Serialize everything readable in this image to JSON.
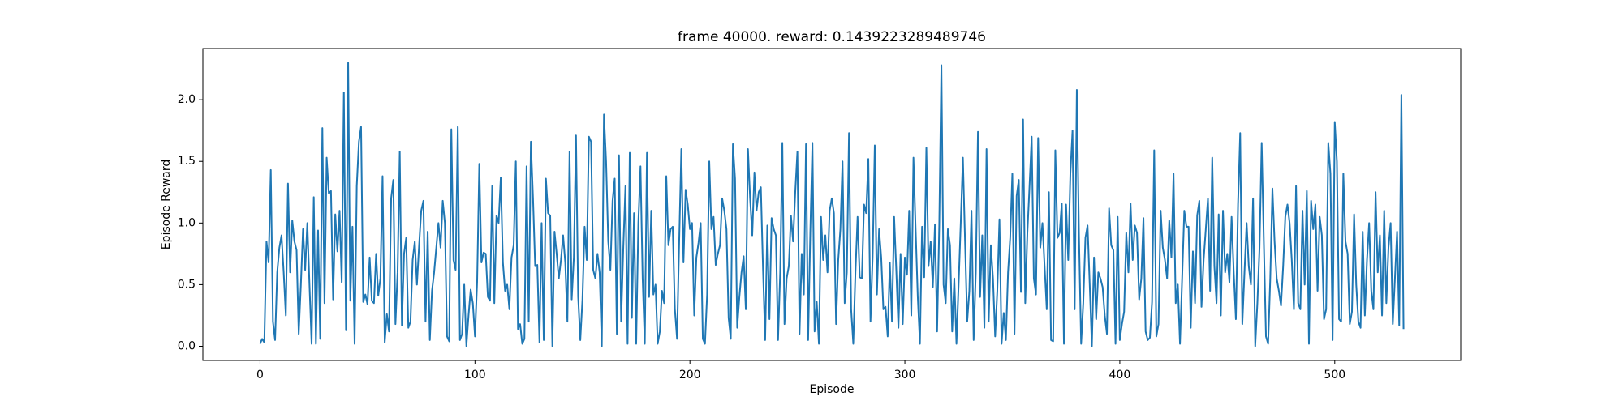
{
  "chart_data": {
    "type": "line",
    "title": "frame 40000. reward: 0.1439223289489746",
    "x_label": "Episode",
    "y_label": "Episode Reward",
    "color": "#1f77b4",
    "xlim": [
      -26.6,
      558.6
    ],
    "ylim": [
      -0.115,
      2.415
    ],
    "xticks": [
      0,
      100,
      200,
      300,
      400,
      500
    ],
    "yticks": [
      {
        "value": 0,
        "label": "0.0"
      },
      0.5,
      {
        "value": 1,
        "label": "1.0"
      },
      1.5,
      {
        "value": 2,
        "label": "2.0"
      }
    ],
    "values": [
      0.02,
      0.06,
      0.03,
      0.85,
      0.68,
      1.43,
      0.2,
      0.05,
      0.6,
      0.8,
      0.9,
      0.6,
      0.25,
      1.32,
      0.6,
      1.02,
      0.85,
      0.78,
      0.1,
      0.5,
      0.95,
      0.62,
      1.0,
      0.5,
      0.02,
      1.21,
      0.02,
      0.94,
      0.06,
      1.77,
      0.35,
      1.53,
      1.24,
      1.26,
      0.38,
      1.07,
      0.77,
      1.1,
      0.52,
      2.06,
      0.13,
      2.3,
      0.37,
      0.97,
      0.02,
      1.3,
      1.66,
      1.78,
      0.36,
      0.42,
      0.34,
      0.72,
      0.37,
      0.35,
      0.75,
      0.41,
      0.55,
      1.38,
      0.03,
      0.26,
      0.12,
      1.2,
      1.35,
      0.18,
      0.6,
      1.58,
      0.17,
      0.75,
      0.88,
      0.15,
      0.2,
      0.7,
      0.85,
      0.5,
      0.82,
      1.1,
      1.18,
      0.2,
      0.93,
      0.05,
      0.45,
      0.6,
      0.8,
      1.0,
      0.8,
      1.18,
      1.0,
      0.08,
      0.04,
      1.76,
      0.7,
      0.62,
      1.78,
      0.05,
      0.1,
      0.5,
      0.0,
      0.25,
      0.46,
      0.35,
      0.08,
      0.52,
      1.48,
      0.68,
      0.76,
      0.75,
      0.4,
      0.37,
      1.3,
      0.35,
      1.06,
      1.0,
      1.37,
      0.68,
      0.45,
      0.5,
      0.3,
      0.72,
      0.82,
      1.5,
      0.14,
      0.18,
      0.02,
      0.06,
      1.46,
      0.2,
      1.66,
      1.2,
      0.65,
      0.66,
      0.03,
      1.0,
      0.05,
      1.36,
      1.08,
      1.06,
      0.0,
      0.93,
      0.75,
      0.55,
      0.7,
      0.9,
      0.68,
      0.2,
      1.58,
      0.38,
      0.72,
      1.71,
      0.4,
      0.05,
      0.38,
      0.97,
      0.7,
      1.7,
      1.66,
      0.62,
      0.55,
      0.75,
      0.6,
      0.0,
      1.88,
      1.5,
      0.85,
      0.62,
      1.18,
      1.36,
      0.1,
      1.55,
      0.2,
      0.8,
      1.3,
      0.02,
      1.57,
      0.23,
      1.08,
      0.02,
      1.0,
      1.46,
      0.55,
      0.02,
      1.57,
      0.4,
      1.1,
      0.42,
      0.5,
      0.02,
      0.12,
      0.45,
      0.35,
      1.38,
      0.82,
      0.95,
      0.97,
      0.3,
      0.06,
      0.85,
      1.6,
      0.68,
      1.27,
      1.15,
      0.95,
      1.0,
      0.25,
      0.72,
      0.84,
      1.0,
      0.06,
      0.02,
      0.42,
      1.5,
      0.95,
      1.05,
      0.66,
      0.75,
      0.82,
      1.2,
      1.1,
      0.95,
      0.23,
      0.06,
      1.64,
      1.36,
      0.15,
      0.4,
      0.6,
      0.73,
      0.3,
      1.6,
      1.2,
      0.9,
      1.41,
      1.1,
      1.25,
      1.29,
      0.63,
      0.05,
      0.98,
      0.22,
      1.04,
      0.95,
      0.9,
      0.05,
      0.6,
      1.65,
      0.18,
      0.55,
      0.65,
      1.06,
      0.85,
      1.25,
      1.58,
      0.1,
      0.75,
      0.42,
      1.64,
      0.05,
      0.92,
      1.65,
      0.12,
      0.36,
      0.02,
      1.05,
      0.7,
      0.9,
      0.6,
      1.1,
      1.2,
      1.08,
      0.18,
      0.7,
      0.95,
      1.5,
      0.35,
      0.6,
      1.73,
      0.3,
      0.02,
      0.6,
      1.05,
      0.56,
      0.55,
      1.15,
      1.08,
      1.52,
      0.2,
      0.72,
      1.63,
      0.42,
      0.95,
      0.72,
      0.3,
      0.32,
      0.08,
      0.68,
      0.2,
      1.05,
      0.62,
      0.15,
      0.75,
      0.18,
      0.72,
      0.58,
      1.1,
      0.25,
      1.53,
      0.95,
      0.4,
      0.02,
      0.97,
      0.56,
      1.61,
      0.65,
      0.85,
      0.48,
      0.99,
      0.12,
      0.98,
      2.28,
      0.5,
      0.35,
      0.95,
      0.82,
      0.12,
      0.55,
      0.02,
      0.5,
      1.0,
      1.53,
      0.85,
      0.2,
      0.45,
      1.1,
      0.05,
      0.6,
      1.74,
      0.4,
      0.9,
      0.15,
      1.6,
      0.2,
      0.82,
      0.55,
      0.08,
      0.45,
      1.03,
      0.02,
      0.27,
      0.05,
      0.6,
      0.88,
      1.4,
      0.1,
      1.22,
      1.35,
      0.44,
      1.84,
      0.35,
      0.92,
      1.3,
      1.7,
      0.55,
      0.42,
      1.69,
      0.8,
      1.0,
      0.65,
      0.3,
      1.25,
      0.05,
      0.04,
      1.59,
      0.88,
      0.92,
      1.16,
      0.02,
      1.15,
      0.7,
      1.4,
      1.75,
      0.3,
      2.08,
      0.9,
      0.02,
      0.35,
      0.88,
      0.98,
      0.5,
      0.0,
      0.72,
      0.22,
      0.6,
      0.55,
      0.48,
      0.25,
      0.1,
      1.12,
      0.82,
      0.78,
      0.02,
      1.05,
      0.05,
      0.18,
      0.28,
      0.92,
      0.6,
      1.16,
      0.7,
      0.98,
      0.92,
      0.38,
      0.55,
      1.04,
      0.12,
      0.05,
      0.07,
      0.36,
      1.59,
      0.08,
      0.18,
      1.1,
      0.8,
      0.7,
      0.55,
      1.02,
      0.72,
      1.4,
      0.35,
      0.5,
      0.02,
      0.55,
      1.1,
      0.97,
      0.97,
      0.15,
      0.77,
      0.35,
      1.06,
      1.18,
      0.32,
      0.7,
      0.95,
      1.2,
      0.45,
      1.53,
      0.65,
      0.35,
      1.07,
      0.25,
      1.1,
      0.6,
      0.75,
      0.52,
      1.05,
      0.6,
      0.22,
      1.15,
      1.73,
      0.18,
      0.6,
      1.0,
      0.65,
      0.5,
      1.2,
      0.0,
      0.35,
      0.8,
      1.65,
      0.85,
      0.08,
      0.02,
      0.55,
      1.28,
      0.85,
      0.55,
      0.45,
      0.33,
      0.65,
      1.05,
      1.15,
      1.0,
      0.7,
      0.3,
      1.3,
      0.35,
      0.3,
      1.1,
      0.5,
      1.26,
      0.02,
      1.18,
      0.95,
      1.15,
      0.45,
      1.05,
      0.9,
      0.22,
      0.3,
      1.65,
      1.4,
      0.05,
      1.82,
      1.5,
      0.22,
      0.2,
      1.4,
      0.85,
      0.75,
      0.18,
      0.28,
      1.07,
      0.5,
      0.2,
      0.15,
      0.93,
      0.25,
      0.7,
      1.0,
      0.45,
      0.3,
      1.25,
      0.6,
      0.9,
      0.25,
      1.1,
      0.35,
      0.8,
      1.0,
      0.18,
      0.55,
      0.93,
      0.17,
      2.04,
      0.14
    ]
  }
}
